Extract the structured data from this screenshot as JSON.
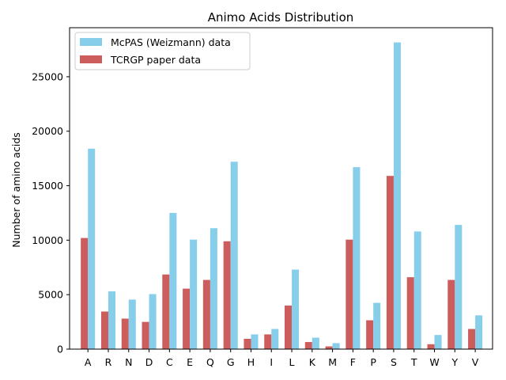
{
  "chart_data": {
    "type": "bar",
    "title": "Animo Acids Distribution",
    "xlabel": "",
    "ylabel": "Number of amino acids",
    "ylim": [
      0,
      29500
    ],
    "yticks": [
      0,
      5000,
      10000,
      15000,
      20000,
      25000
    ],
    "categories": [
      "A",
      "R",
      "N",
      "D",
      "C",
      "E",
      "Q",
      "G",
      "H",
      "I",
      "L",
      "K",
      "M",
      "F",
      "P",
      "S",
      "T",
      "W",
      "Y",
      "V"
    ],
    "series": [
      {
        "name": "McPAS (Weizmann) data",
        "color": "#87ceeb",
        "values": [
          18400,
          5300,
          4550,
          5050,
          12500,
          10050,
          11100,
          17200,
          1350,
          1850,
          7300,
          1050,
          550,
          16700,
          4250,
          28150,
          10800,
          1300,
          11400,
          3100
        ]
      },
      {
        "name": "TCRGP paper data",
        "color": "#cd5c5c",
        "values": [
          10200,
          3450,
          2800,
          2500,
          6850,
          5550,
          6350,
          9900,
          950,
          1350,
          4000,
          650,
          250,
          10050,
          2650,
          15900,
          6600,
          450,
          6350,
          1850
        ]
      }
    ],
    "legend": "top-left",
    "grid": false
  }
}
